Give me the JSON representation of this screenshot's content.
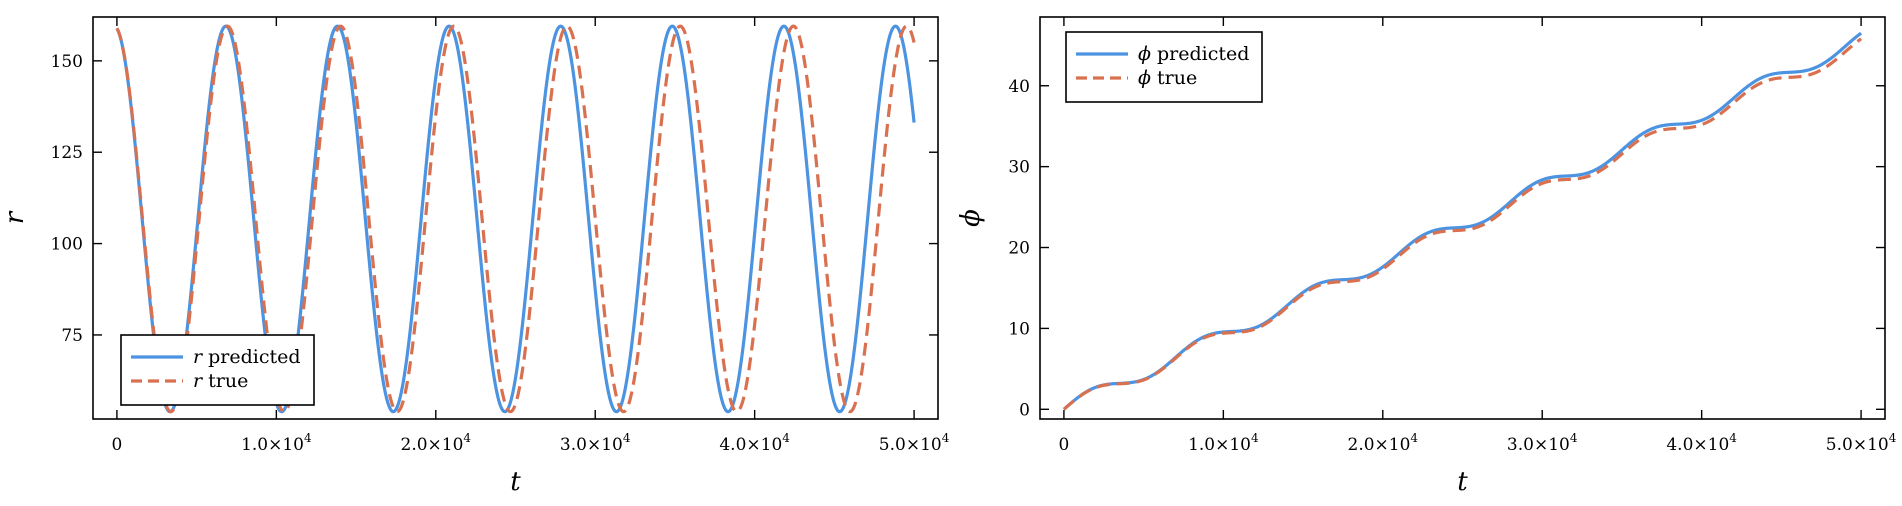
{
  "chart_data": [
    {
      "type": "line",
      "panel": "left",
      "title": "",
      "xlabel": "t",
      "ylabel": "r",
      "xlim": [
        -1500,
        51500
      ],
      "ylim": [
        52,
        162
      ],
      "x_ticks": [
        {
          "value": 0,
          "label": "0"
        },
        {
          "value": 10000,
          "label": "1.0×10",
          "exp": "4"
        },
        {
          "value": 20000,
          "label": "2.0×10",
          "exp": "4"
        },
        {
          "value": 30000,
          "label": "3.0×10",
          "exp": "4"
        },
        {
          "value": 40000,
          "label": "4.0×10",
          "exp": "4"
        },
        {
          "value": 50000,
          "label": "5.0×10",
          "exp": "4"
        }
      ],
      "y_ticks": [
        {
          "value": 75,
          "label": "75"
        },
        {
          "value": 100,
          "label": "100"
        },
        {
          "value": 125,
          "label": "125"
        },
        {
          "value": 150,
          "label": "150"
        }
      ],
      "grid": false,
      "legend_position": "bottom-left",
      "oscillation": {
        "r_min": 54,
        "r_max": 159.5,
        "t_end": 50000
      },
      "series": [
        {
          "name": "r predicted",
          "legend_var": "r",
          "legend_text": " predicted",
          "style": "solid",
          "color": "#4c94e1",
          "period": 7000,
          "phase": 1.0
        },
        {
          "name": "r true",
          "legend_var": "r",
          "legend_text": " true",
          "style": "dashed",
          "color": "#d97150",
          "period": 7100,
          "phase": 1.0
        }
      ]
    },
    {
      "type": "line",
      "panel": "right",
      "title": "",
      "xlabel": "t",
      "ylabel": "ϕ",
      "xlim": [
        -1500,
        51500
      ],
      "ylim": [
        -1.2,
        48.5
      ],
      "x_ticks": [
        {
          "value": 0,
          "label": "0"
        },
        {
          "value": 10000,
          "label": "1.0×10",
          "exp": "4"
        },
        {
          "value": 20000,
          "label": "2.0×10",
          "exp": "4"
        },
        {
          "value": 30000,
          "label": "3.0×10",
          "exp": "4"
        },
        {
          "value": 40000,
          "label": "4.0×10",
          "exp": "4"
        },
        {
          "value": 50000,
          "label": "5.0×10",
          "exp": "4"
        }
      ],
      "y_ticks": [
        {
          "value": 0,
          "label": "0"
        },
        {
          "value": 10,
          "label": "10"
        },
        {
          "value": 20,
          "label": "20"
        },
        {
          "value": 30,
          "label": "30"
        },
        {
          "value": 40,
          "label": "40"
        }
      ],
      "grid": false,
      "legend_position": "top-left",
      "staircase": {
        "end_value": 46.5,
        "period": 7000,
        "wiggle": 0.9
      },
      "series": [
        {
          "name": "ϕ predicted",
          "legend_var": "ϕ",
          "legend_text": " predicted",
          "style": "solid",
          "color": "#4c94e1",
          "scale": 1.0
        },
        {
          "name": "ϕ true",
          "legend_var": "ϕ",
          "legend_text": " true",
          "style": "dashed",
          "color": "#d97150",
          "scale": 0.985
        }
      ]
    }
  ]
}
